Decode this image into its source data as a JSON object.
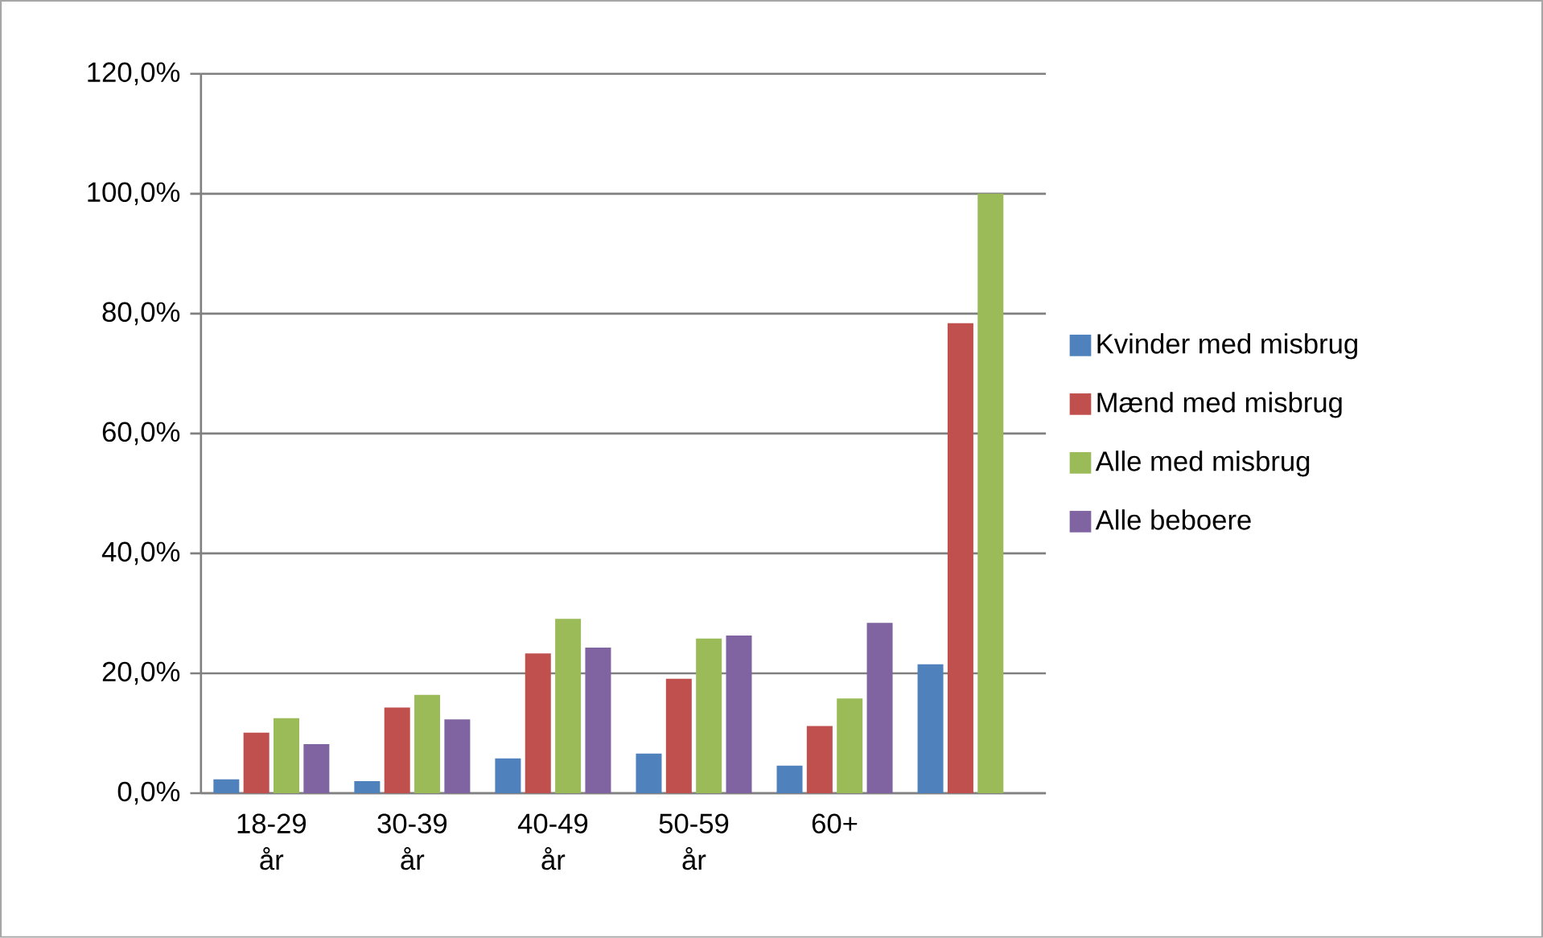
{
  "chart_data": {
    "type": "bar",
    "categories": [
      "18-29 år",
      "30-39 år",
      "40-49 år",
      "50-59 år",
      "60+",
      null
    ],
    "series": [
      {
        "name": "Kvinder med misbrug",
        "color": "#4f81bd",
        "values": [
          2.3,
          2.0,
          5.8,
          6.6,
          4.6,
          21.5
        ]
      },
      {
        "name": "Mænd med misbrug",
        "color": "#c0504d",
        "values": [
          10.1,
          14.3,
          23.3,
          19.1,
          11.2,
          78.4
        ]
      },
      {
        "name": "Alle med misbrug",
        "color": "#9bbb59",
        "values": [
          12.5,
          16.4,
          29.1,
          25.8,
          15.8,
          100.0
        ]
      },
      {
        "name": "Alle beboere",
        "color": "#8064a2",
        "values": [
          8.2,
          12.3,
          24.3,
          26.3,
          28.4,
          null
        ]
      }
    ],
    "ylim": [
      0,
      120
    ],
    "yticks": [
      {
        "value": 0,
        "label": "0,0%"
      },
      {
        "value": 20,
        "label": "20,0%"
      },
      {
        "value": 40,
        "label": "40,0%"
      },
      {
        "value": 60,
        "label": "60,0%"
      },
      {
        "value": 80,
        "label": "80,0%"
      },
      {
        "value": 100,
        "label": "100,0%"
      },
      {
        "value": 120,
        "label": "120,0%"
      }
    ],
    "grid": "y",
    "legend": "right"
  }
}
